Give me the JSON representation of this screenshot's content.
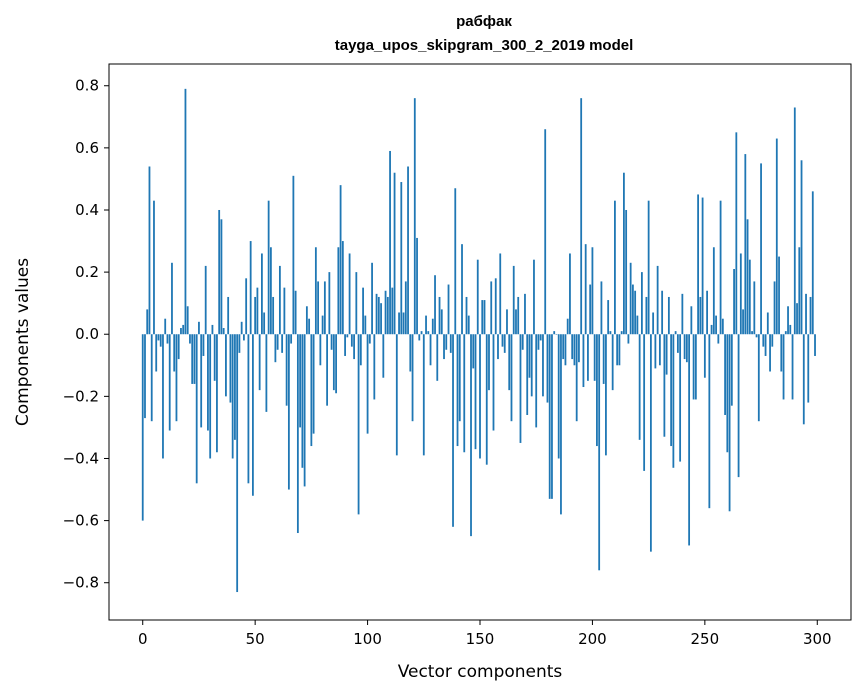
{
  "chart_data": {
    "type": "bar",
    "title_line1": "рабфак",
    "title_line2": "tayga_upos_skipgram_300_2_2019 model",
    "xlabel": "Vector components",
    "ylabel": "Components values",
    "xlim": [
      -15,
      315
    ],
    "ylim": [
      -0.92,
      0.87
    ],
    "x_ticks": [
      0,
      50,
      100,
      150,
      200,
      250,
      300
    ],
    "x_tick_labels": [
      "0",
      "50",
      "100",
      "150",
      "200",
      "250",
      "300"
    ],
    "y_ticks": [
      -0.8,
      -0.6,
      -0.4,
      -0.2,
      0.0,
      0.2,
      0.4,
      0.6,
      0.8
    ],
    "y_tick_labels": [
      "−0.8",
      "−0.6",
      "−0.4",
      "−0.2",
      "0.0",
      "0.2",
      "0.4",
      "0.6",
      "0.8"
    ],
    "bar_color": "#1f77b4",
    "grid": false,
    "legend": "none",
    "x": "0..299 (component index)",
    "values": [
      -0.6,
      -0.27,
      0.08,
      0.54,
      -0.28,
      0.43,
      -0.12,
      -0.02,
      -0.04,
      -0.4,
      0.05,
      -0.03,
      -0.31,
      0.23,
      -0.12,
      -0.28,
      -0.08,
      0.02,
      0.03,
      0.79,
      0.09,
      -0.03,
      -0.16,
      -0.16,
      -0.48,
      0.04,
      -0.3,
      -0.07,
      0.22,
      -0.31,
      -0.4,
      0.03,
      -0.15,
      -0.38,
      0.4,
      0.37,
      0.02,
      -0.2,
      0.12,
      -0.22,
      -0.4,
      -0.34,
      -0.83,
      -0.06,
      0.04,
      -0.02,
      0.18,
      -0.48,
      0.3,
      -0.52,
      0.12,
      0.15,
      -0.18,
      0.26,
      0.07,
      -0.25,
      0.43,
      0.28,
      0.12,
      -0.09,
      -0.05,
      0.22,
      -0.06,
      0.15,
      -0.23,
      -0.5,
      -0.03,
      0.51,
      0.14,
      -0.64,
      -0.3,
      -0.43,
      -0.49,
      0.09,
      0.05,
      -0.36,
      -0.32,
      0.28,
      0.17,
      -0.1,
      0.06,
      0.17,
      -0.23,
      0.2,
      -0.05,
      -0.18,
      -0.19,
      0.28,
      0.48,
      0.3,
      -0.07,
      -0.01,
      0.26,
      -0.04,
      -0.08,
      0.2,
      -0.58,
      -0.1,
      0.15,
      0.06,
      -0.32,
      -0.03,
      0.23,
      -0.21,
      0.13,
      0.12,
      0.1,
      -0.14,
      0.14,
      0.12,
      0.59,
      0.15,
      0.52,
      -0.39,
      0.07,
      0.49,
      0.07,
      0.17,
      0.54,
      -0.12,
      -0.28,
      0.76,
      0.31,
      -0.02,
      0.01,
      -0.39,
      0.06,
      0.01,
      -0.1,
      0.05,
      0.19,
      -0.15,
      0.12,
      0.08,
      -0.08,
      -0.05,
      0.16,
      -0.06,
      -0.62,
      0.47,
      -0.36,
      -0.28,
      0.29,
      -0.38,
      0.12,
      0.06,
      -0.65,
      -0.11,
      -0.37,
      0.24,
      -0.4,
      0.11,
      0.11,
      -0.42,
      -0.18,
      0.17,
      -0.31,
      0.18,
      -0.08,
      0.26,
      -0.04,
      -0.06,
      0.08,
      -0.18,
      -0.28,
      0.22,
      0.08,
      0.12,
      -0.35,
      -0.05,
      0.13,
      -0.26,
      -0.14,
      -0.2,
      0.24,
      -0.3,
      -0.05,
      -0.02,
      -0.2,
      0.66,
      -0.22,
      -0.53,
      -0.53,
      0.01,
      0.0,
      -0.4,
      -0.58,
      -0.08,
      -0.1,
      0.05,
      0.26,
      -0.08,
      -0.1,
      -0.28,
      -0.09,
      0.76,
      -0.17,
      0.29,
      -0.15,
      0.16,
      0.28,
      -0.15,
      -0.36,
      -0.76,
      0.17,
      -0.16,
      -0.39,
      0.11,
      0.01,
      -0.18,
      0.43,
      -0.1,
      -0.1,
      0.01,
      0.52,
      0.4,
      -0.03,
      0.23,
      0.16,
      0.14,
      0.06,
      -0.34,
      0.2,
      -0.44,
      0.12,
      0.43,
      -0.7,
      0.07,
      -0.11,
      0.22,
      -0.1,
      0.14,
      -0.33,
      -0.13,
      0.12,
      -0.36,
      -0.43,
      0.01,
      -0.06,
      -0.41,
      0.13,
      -0.08,
      -0.09,
      -0.68,
      0.09,
      -0.21,
      -0.21,
      0.45,
      0.12,
      0.44,
      -0.14,
      0.14,
      -0.56,
      0.03,
      0.28,
      0.06,
      -0.03,
      0.43,
      0.05,
      -0.26,
      -0.38,
      -0.57,
      -0.23,
      0.21,
      0.65,
      -0.46,
      0.26,
      0.08,
      0.58,
      0.37,
      0.24,
      0.01,
      0.17,
      -0.01,
      -0.28,
      0.55,
      -0.04,
      -0.07,
      0.07,
      -0.12,
      -0.04,
      0.17,
      0.63,
      0.25,
      -0.12,
      -0.21,
      0.01,
      0.09,
      0.03,
      -0.21,
      0.73,
      0.1,
      0.28,
      0.56,
      -0.29,
      0.13,
      -0.22,
      0.12,
      0.46,
      -0.07
    ]
  }
}
